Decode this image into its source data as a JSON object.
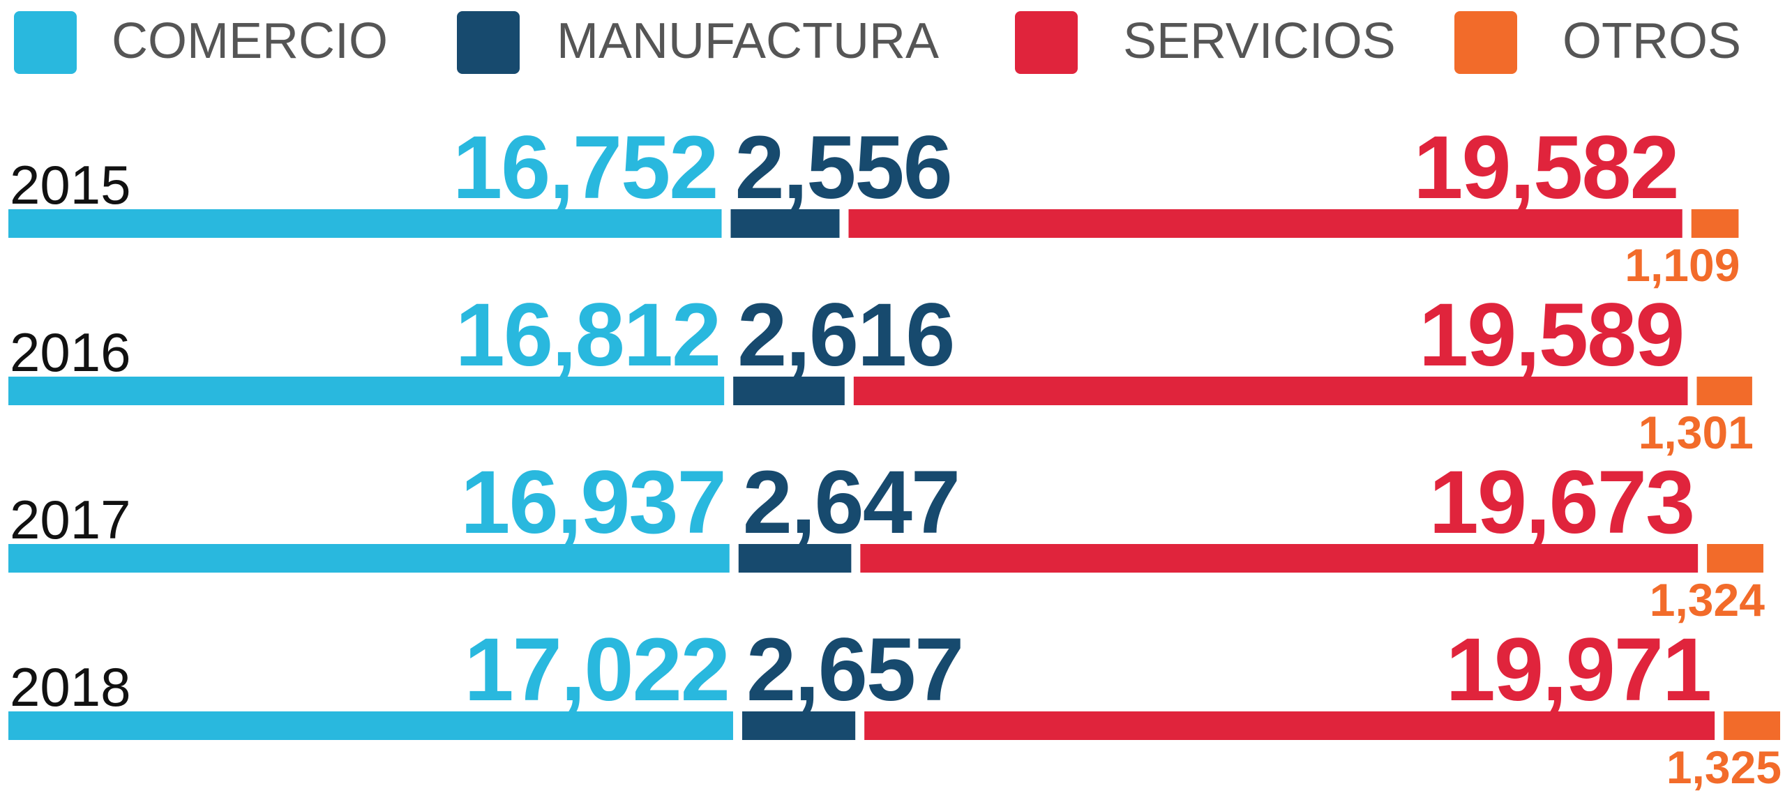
{
  "chart_data": {
    "type": "stacked-bar-horizontal",
    "categories": [
      "2015",
      "2016",
      "2017",
      "2018"
    ],
    "series": [
      {
        "name": "COMERCIO",
        "color": "#29b8de",
        "values": [
          16752,
          16812,
          16937,
          17022
        ],
        "value_labels": [
          "16,752",
          "16,812",
          "16,937",
          "17,022"
        ]
      },
      {
        "name": "MANUFACTURA",
        "color": "#174a6e",
        "values": [
          2556,
          2616,
          2647,
          2657
        ],
        "value_labels": [
          "2,556",
          "2,616",
          "2,647",
          "2,657"
        ]
      },
      {
        "name": "SERVICIOS",
        "color": "#e0243c",
        "values": [
          19582,
          19589,
          19673,
          19971
        ],
        "value_labels": [
          "19,582",
          "19,589",
          "19,673",
          "19,971"
        ]
      },
      {
        "name": "OTROS",
        "color": "#f26b2a",
        "values": [
          1109,
          1301,
          1324,
          1325
        ],
        "value_labels": [
          "1,109",
          "1,301",
          "1,324",
          "1,325"
        ]
      }
    ]
  }
}
